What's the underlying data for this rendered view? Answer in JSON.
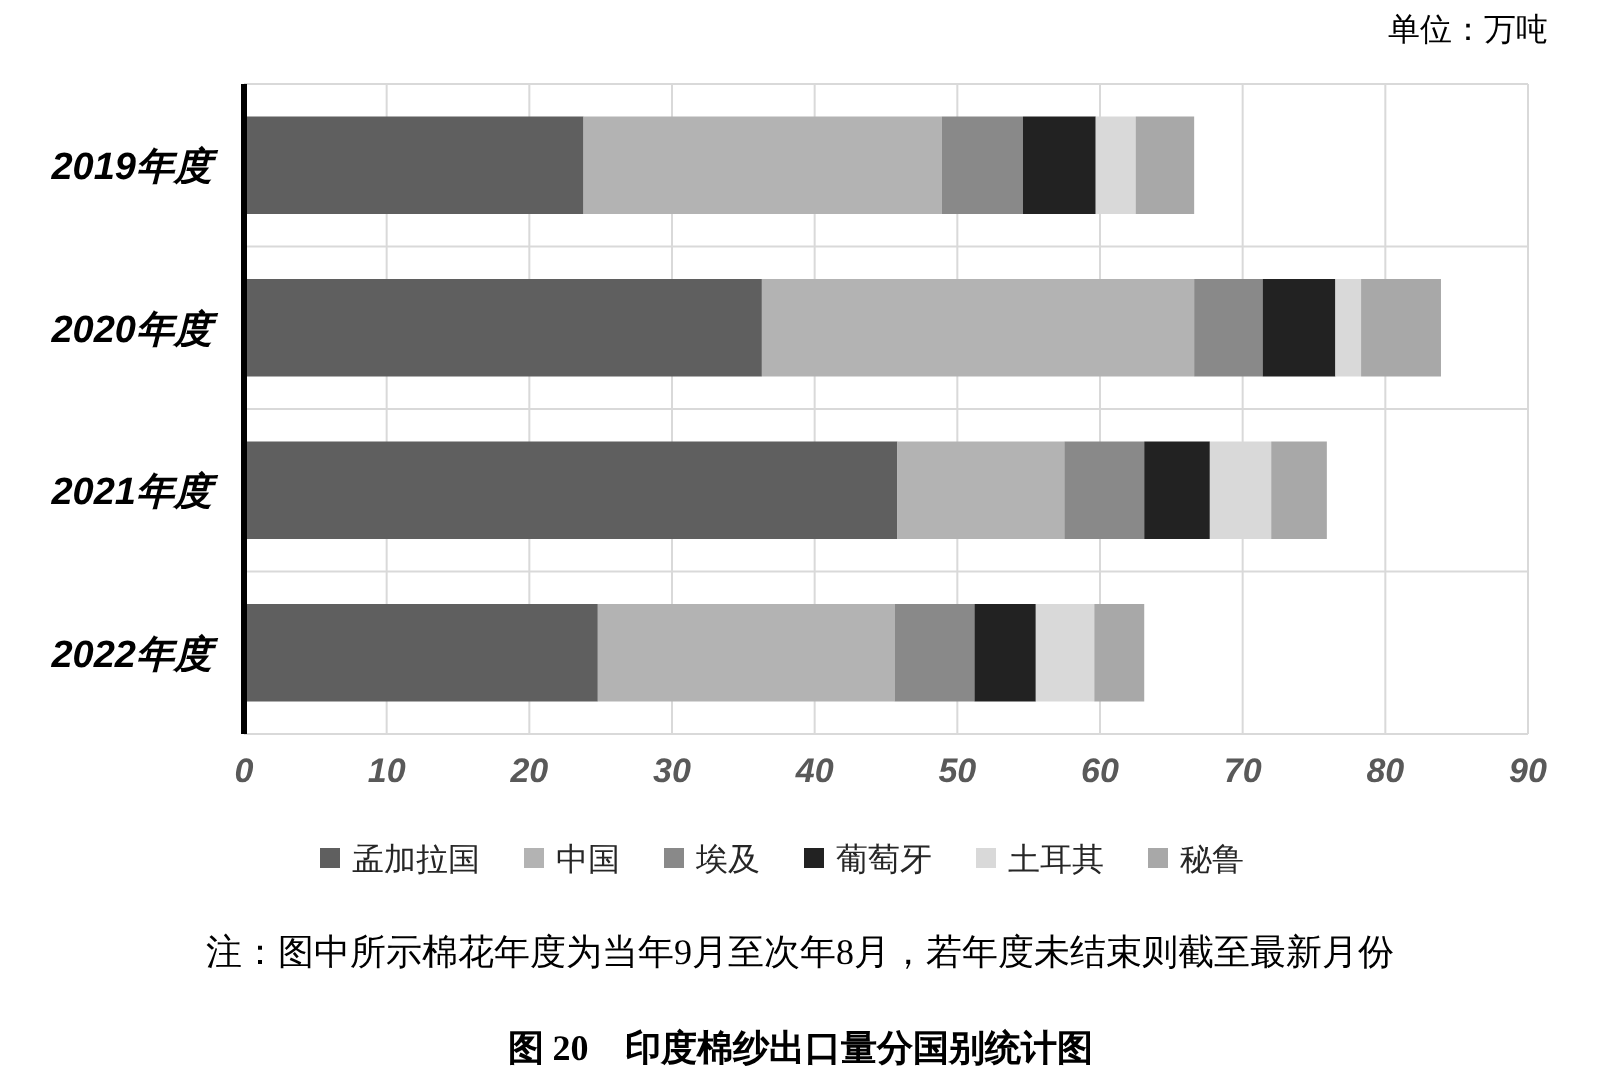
{
  "chart_data": {
    "type": "bar",
    "orientation": "horizontal",
    "stacked": true,
    "title": "图 20　印度棉纱出口量分国别统计图",
    "annotations": [
      "单位：万吨",
      "注：图中所示棉花年度为当年9月至次年8月，若年度未结束则截至最新月份"
    ],
    "categories": [
      "2019年度",
      "2020年度",
      "2021年度",
      "2022年度"
    ],
    "series": [
      {
        "name": "孟加拉国",
        "color": "#5f5f5f",
        "values": [
          23.8,
          36.3,
          45.8,
          24.8
        ]
      },
      {
        "name": "中国",
        "color": "#b3b3b3",
        "values": [
          25.1,
          30.3,
          11.7,
          20.8
        ]
      },
      {
        "name": "埃及",
        "color": "#898989",
        "values": [
          5.7,
          4.8,
          5.6,
          5.6
        ]
      },
      {
        "name": "葡萄牙",
        "color": "#222222",
        "values": [
          5.1,
          5.1,
          4.6,
          4.3
        ]
      },
      {
        "name": "土耳其",
        "color": "#d9d9d9",
        "values": [
          2.8,
          1.8,
          4.3,
          4.1
        ]
      },
      {
        "name": "秘鲁",
        "color": "#a8a8a8",
        "values": [
          4.1,
          5.6,
          3.9,
          3.5
        ]
      }
    ],
    "xlim": [
      0,
      90
    ],
    "xticks": [
      0,
      10,
      20,
      30,
      40,
      50,
      60,
      70,
      80,
      90
    ],
    "grid": "x",
    "legend": "bottom"
  }
}
